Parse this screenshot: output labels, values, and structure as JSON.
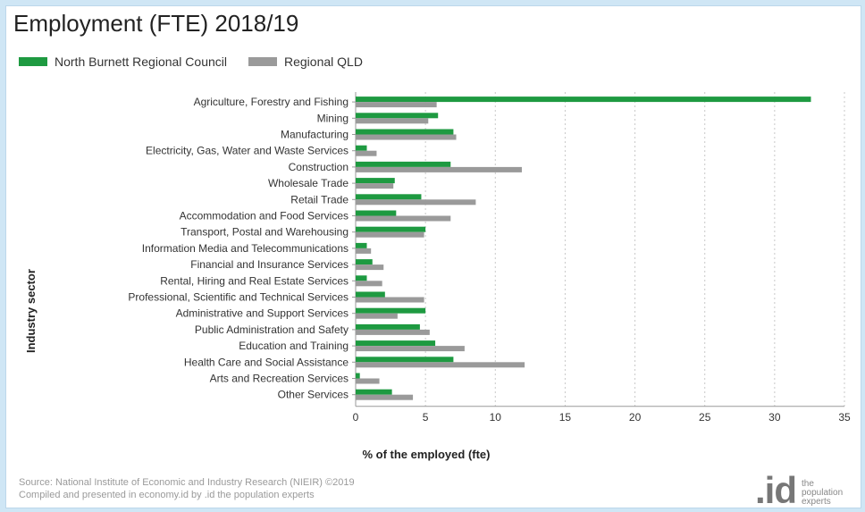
{
  "header": {
    "title": "Employment (FTE) 2018/19"
  },
  "legend": [
    {
      "name": "North Burnett Regional Council",
      "color": "#1e9a41"
    },
    {
      "name": "Regional QLD",
      "color": "#9a9a9a"
    }
  ],
  "chart_data": {
    "type": "bar",
    "orientation": "horizontal",
    "categories": [
      "Agriculture, Forestry and Fishing",
      "Mining",
      "Manufacturing",
      "Electricity, Gas, Water and Waste Services",
      "Construction",
      "Wholesale Trade",
      "Retail Trade",
      "Accommodation and Food Services",
      "Transport, Postal and Warehousing",
      "Information Media and Telecommunications",
      "Financial and Insurance Services",
      "Rental, Hiring and Real Estate Services",
      "Professional, Scientific and Technical Services",
      "Administrative and Support Services",
      "Public Administration and Safety",
      "Education and Training",
      "Health Care and Social Assistance",
      "Arts and Recreation Services",
      "Other Services"
    ],
    "series": [
      {
        "name": "North Burnett Regional Council",
        "color": "#1e9a41",
        "values": [
          32.6,
          5.9,
          7.0,
          0.8,
          6.8,
          2.8,
          4.7,
          2.9,
          5.0,
          0.8,
          1.2,
          0.8,
          2.1,
          5.0,
          4.6,
          5.7,
          7.0,
          0.3,
          2.6
        ]
      },
      {
        "name": "Regional QLD",
        "color": "#9a9a9a",
        "values": [
          5.8,
          5.2,
          7.2,
          1.5,
          11.9,
          2.7,
          8.6,
          6.8,
          4.9,
          1.1,
          2.0,
          1.9,
          4.9,
          3.0,
          5.3,
          7.8,
          12.1,
          1.7,
          4.1
        ]
      }
    ],
    "xlabel": "% of the employed (fte)",
    "ylabel": "Industry sector",
    "xlim": [
      0,
      35
    ],
    "xticks": [
      0,
      5,
      10,
      15,
      20,
      25,
      30,
      35
    ],
    "grid": true,
    "legend_position": "top-left"
  },
  "footer": {
    "source_line1": "Source: National Institute of Economic and Industry Research (NIEIR) ©2019",
    "source_line2": "Compiled and presented in economy.id by .id the population experts",
    "brand_mark": ".id",
    "brand_tag": [
      "the",
      "population",
      "experts"
    ]
  }
}
